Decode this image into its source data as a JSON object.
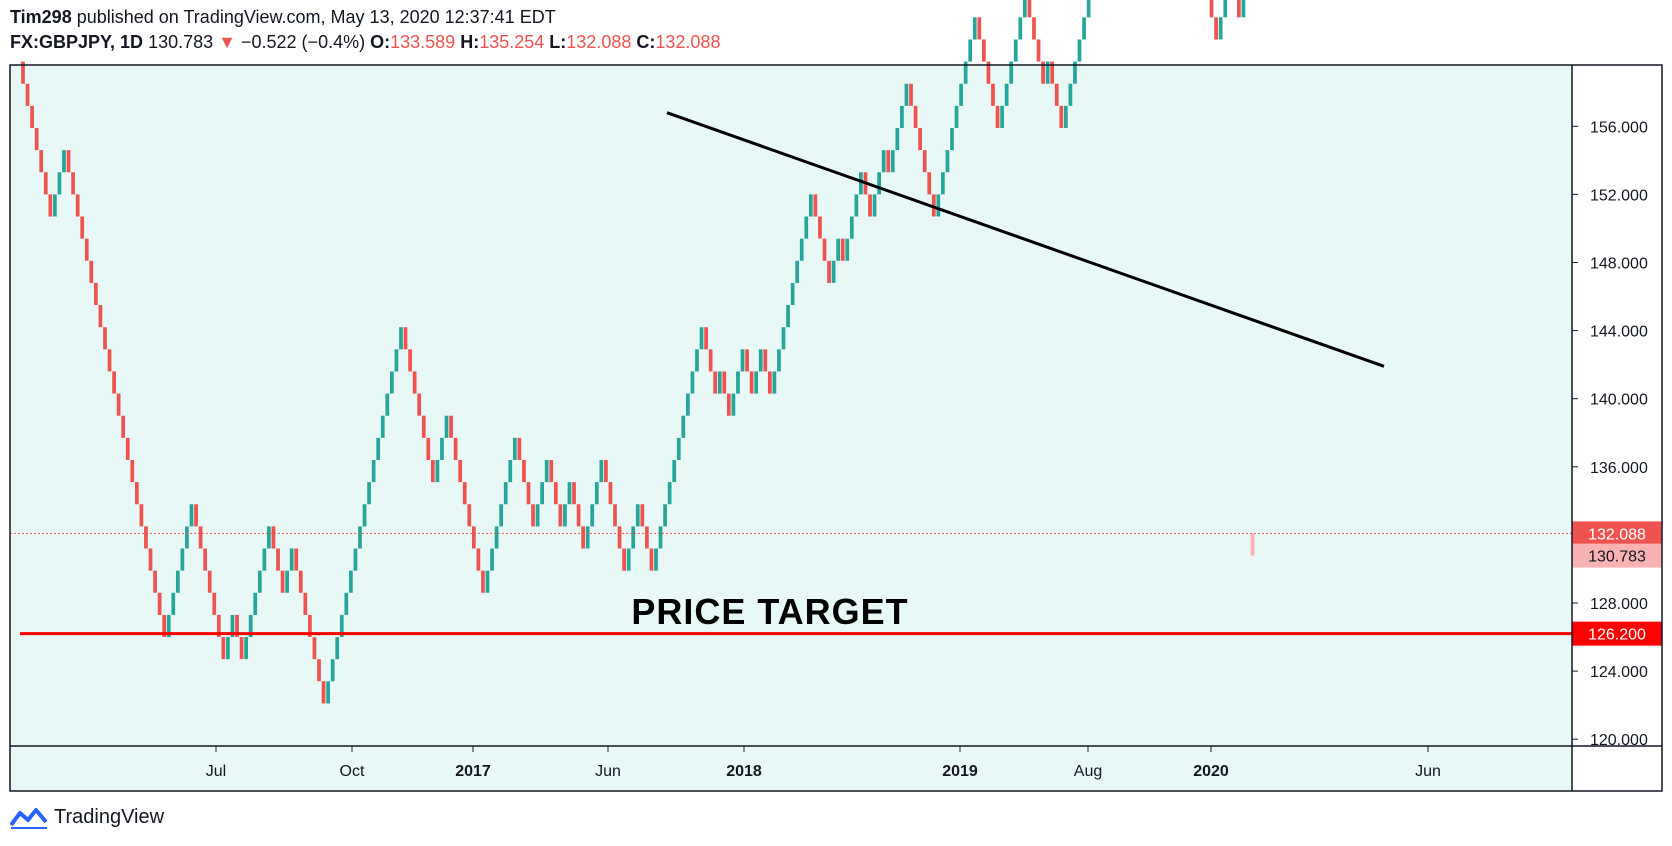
{
  "header": {
    "author": "Tim298",
    "published_text": " published on TradingView.com, May 13, 2020 12:37:41 EDT",
    "symbol": "FX:GBPJPY, 1D",
    "last": "130.783",
    "down_arrow": "▼",
    "change": "−0.522 (−0.4%)",
    "o_label": "O:",
    "o_value": "133.589",
    "h_label": "H:",
    "h_value": "135.254",
    "l_label": "L:",
    "l_value": "132.088",
    "c_label": "C:",
    "c_value": "132.088"
  },
  "footer": {
    "brand": "TradingView",
    "logo_icon": "tradingview-logo-icon"
  },
  "colors": {
    "up": "#26a69a",
    "down": "#ef5350",
    "background": "#e8f8f6",
    "target_line": "#ff0000",
    "trend_line": "#000000",
    "last_tag": "#f8b2b2"
  },
  "chart_data": {
    "type": "renko",
    "annotation": "PRICE TARGET",
    "price_target": 126.2,
    "yaxis_ticks": [
      "156.000",
      "152.000",
      "148.000",
      "144.000",
      "140.000",
      "136.000",
      "132.000",
      "128.000",
      "124.000",
      "120.000"
    ],
    "ylim": [
      119.6,
      159.6
    ],
    "xaxis_ticks": [
      "Jul",
      "Oct",
      "2017",
      "Jun",
      "2018",
      "2019",
      "Aug",
      "2020",
      "Jun"
    ],
    "price_tags": [
      {
        "label": "132.088",
        "value": 132.088,
        "color": "#ef5350"
      },
      {
        "label": "130.783",
        "value": 130.783,
        "color": "#f8b2b2"
      },
      {
        "label": "126.200",
        "value": 126.2,
        "color": "#ff0000"
      }
    ],
    "brick_size": 1.3,
    "start_price": 159.8,
    "legs": [
      -7,
      3,
      -22,
      6,
      -7,
      2,
      -2,
      6,
      -3,
      2,
      -7,
      17,
      -7,
      3,
      -5,
      -2,
      -1,
      7,
      -4,
      3,
      -3,
      2,
      -3,
      4,
      -5,
      3,
      -3,
      11,
      -3,
      1,
      -2,
      3,
      -2,
      2,
      -2,
      9,
      -4,
      2,
      -1,
      4,
      -2,
      3,
      -1,
      4,
      -6,
      9,
      -5,
      6,
      -4,
      1,
      -3,
      13,
      -5,
      2,
      -2,
      4,
      -8,
      3,
      -2,
      2
    ],
    "trendline": [
      {
        "x": "2017-09",
        "y": 156.8
      },
      {
        "x": "2020-06",
        "y": 141.9
      }
    ]
  }
}
